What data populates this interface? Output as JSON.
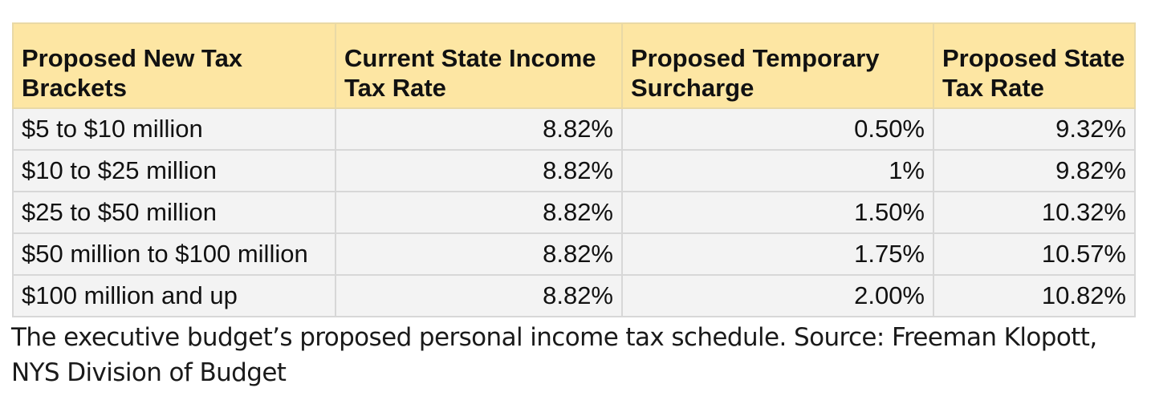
{
  "table": {
    "headers": [
      "Proposed New Tax Brackets",
      "Current State Income Tax Rate",
      "Proposed Temporary Surcharge",
      "Proposed State Tax Rate"
    ],
    "rows": [
      [
        "$5 to $10 million",
        "8.82%",
        "0.50%",
        "9.32%"
      ],
      [
        "$10 to $25 million",
        "8.82%",
        "1%",
        "9.82%"
      ],
      [
        "$25 to $50 million",
        "8.82%",
        "1.50%",
        "10.32%"
      ],
      [
        "$50 million to $100 million",
        "8.82%",
        "1.75%",
        "10.57%"
      ],
      [
        "$100 million and up",
        "8.82%",
        "2.00%",
        "10.82%"
      ]
    ]
  },
  "caption": "The executive budget’s proposed personal income tax schedule. Source: Freeman Klopott, NYS Division of Budget",
  "colors": {
    "header_bg": "#fde6a3",
    "row_bg": "#f3f3f3",
    "border": "#d7d7d7"
  }
}
